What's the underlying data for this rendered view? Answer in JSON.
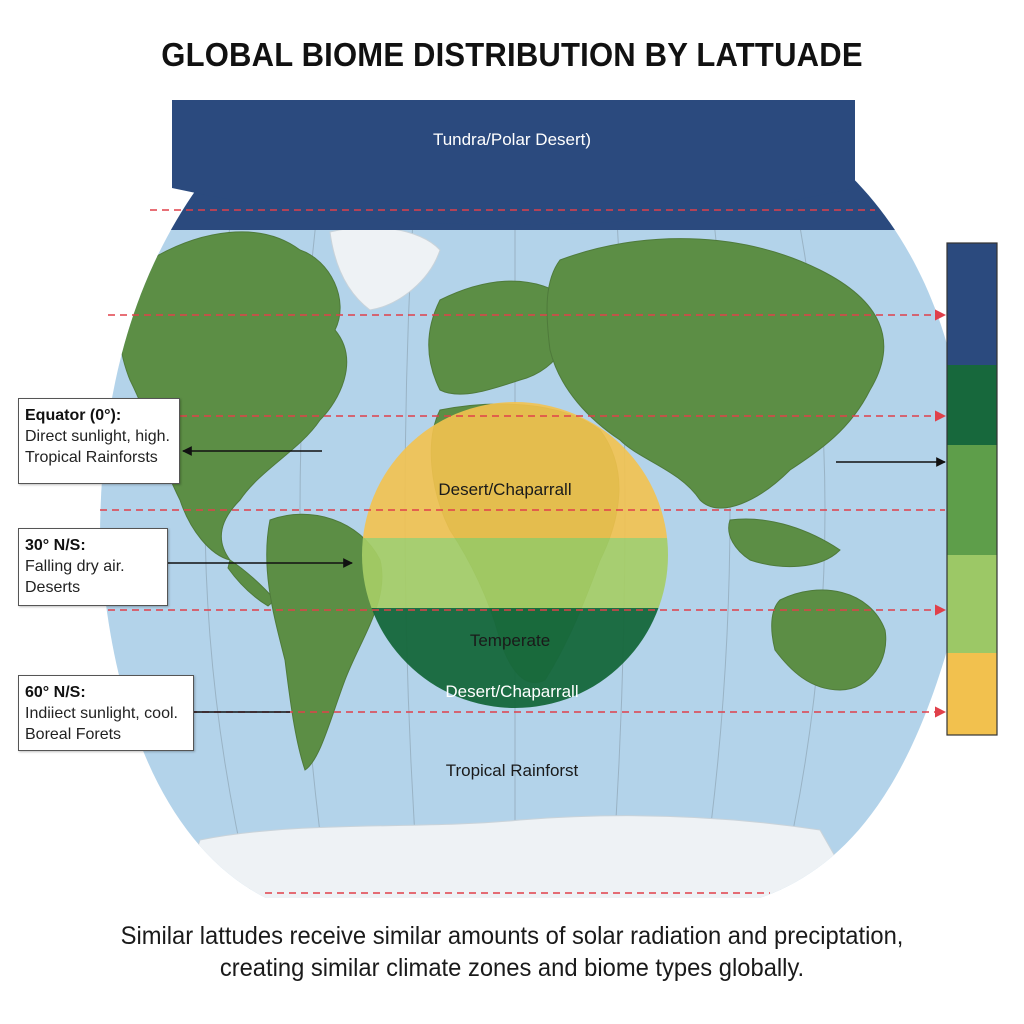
{
  "title": "GLOBAL BIOME DISTRIBUTION BY LATTUADE",
  "map": {
    "polar_label": "Tundra/Polar Desert)",
    "overlay_labels": {
      "desert_top": "Desert/Chaparrall",
      "temperate": "Temperate",
      "desert_bottom": "Desert/Chaparrall",
      "tropical": "Tropical Rainforst"
    },
    "legend_colors": [
      "#2b4a7e",
      "#17683c",
      "#5e9e4a",
      "#9cc866",
      "#f2c14e"
    ],
    "colors": {
      "ocean": "#b3d3ea",
      "land": "#5c8e45",
      "ice": "#eef2f5",
      "polar_band": "#2b4a7e",
      "dashed_line": "#e0404a",
      "overlay_yellow": "#f3c24f",
      "overlay_lightgreen": "#a6cd66",
      "overlay_darkgreen": "#17683c"
    }
  },
  "callouts": {
    "equator": {
      "heading": "Equator (0°):",
      "line1": "Direct sunlight, high.",
      "line2": "Tropical Rainforsts"
    },
    "thirty": {
      "heading": "30° N/S:",
      "line1": "Falling dry air.",
      "line2": "Deserts"
    },
    "sixty": {
      "heading": "60° N/S:",
      "line1": "Indiiect sunlight, cool.",
      "line2": "Boreal Forets"
    }
  },
  "caption": {
    "line1": "Similar lattudes receive similar amounts of solar radiation and preciptation,",
    "line2": "creating similar climate zones and biome types globally."
  }
}
